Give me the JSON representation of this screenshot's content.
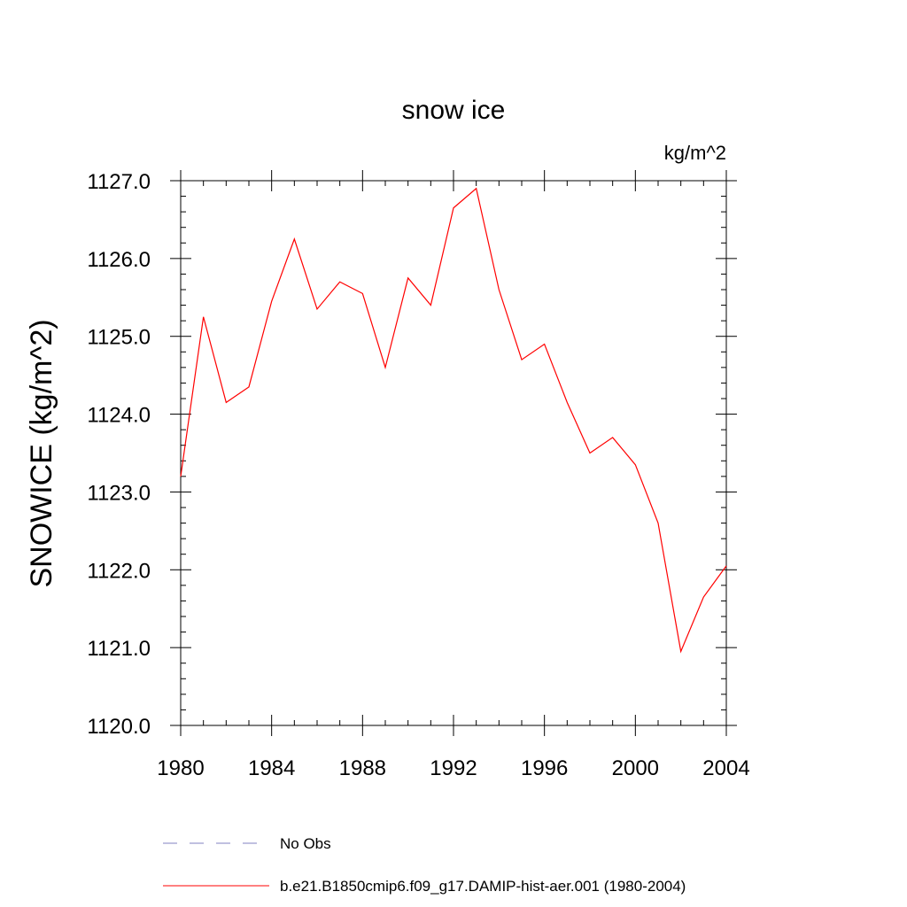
{
  "chart_data": {
    "type": "line",
    "title": "snow ice",
    "units": "kg/m^2",
    "ylabel": "SNOWICE  (kg/m^2)",
    "xlabel": "",
    "xlim": [
      1980,
      2004
    ],
    "ylim": [
      1120.0,
      1127.0
    ],
    "x_ticks": [
      "1980",
      "1984",
      "1988",
      "1992",
      "1996",
      "2000",
      "2004"
    ],
    "y_ticks": [
      "1120.0",
      "1121.0",
      "1122.0",
      "1123.0",
      "1124.0",
      "1125.0",
      "1126.0",
      "1127.0"
    ],
    "grid": false,
    "legend_position": "bottom",
    "series": [
      {
        "name": "b.e21.B1850cmip6.f09_g17.DAMIP-hist-aer.001 (1980-2004)",
        "color": "#ff0000",
        "style": "solid",
        "x": [
          1980,
          1981,
          1982,
          1983,
          1984,
          1985,
          1986,
          1987,
          1988,
          1989,
          1990,
          1991,
          1992,
          1993,
          1994,
          1995,
          1996,
          1997,
          1998,
          1999,
          2000,
          2001,
          2002,
          2003,
          2004
        ],
        "values": [
          1123.2,
          1125.25,
          1124.15,
          1124.35,
          1125.45,
          1126.25,
          1125.35,
          1125.7,
          1125.55,
          1124.6,
          1125.75,
          1125.4,
          1126.65,
          1126.9,
          1125.6,
          1124.7,
          1124.9,
          1124.15,
          1123.5,
          1123.7,
          1123.35,
          1122.6,
          1120.95,
          1121.65,
          1122.05
        ]
      }
    ],
    "legend": [
      {
        "label": "No Obs",
        "color": "#8080c0",
        "style": "dashed"
      },
      {
        "label": "b.e21.B1850cmip6.f09_g17.DAMIP-hist-aer.001 (1980-2004)",
        "color": "#ff0000",
        "style": "solid"
      }
    ]
  }
}
